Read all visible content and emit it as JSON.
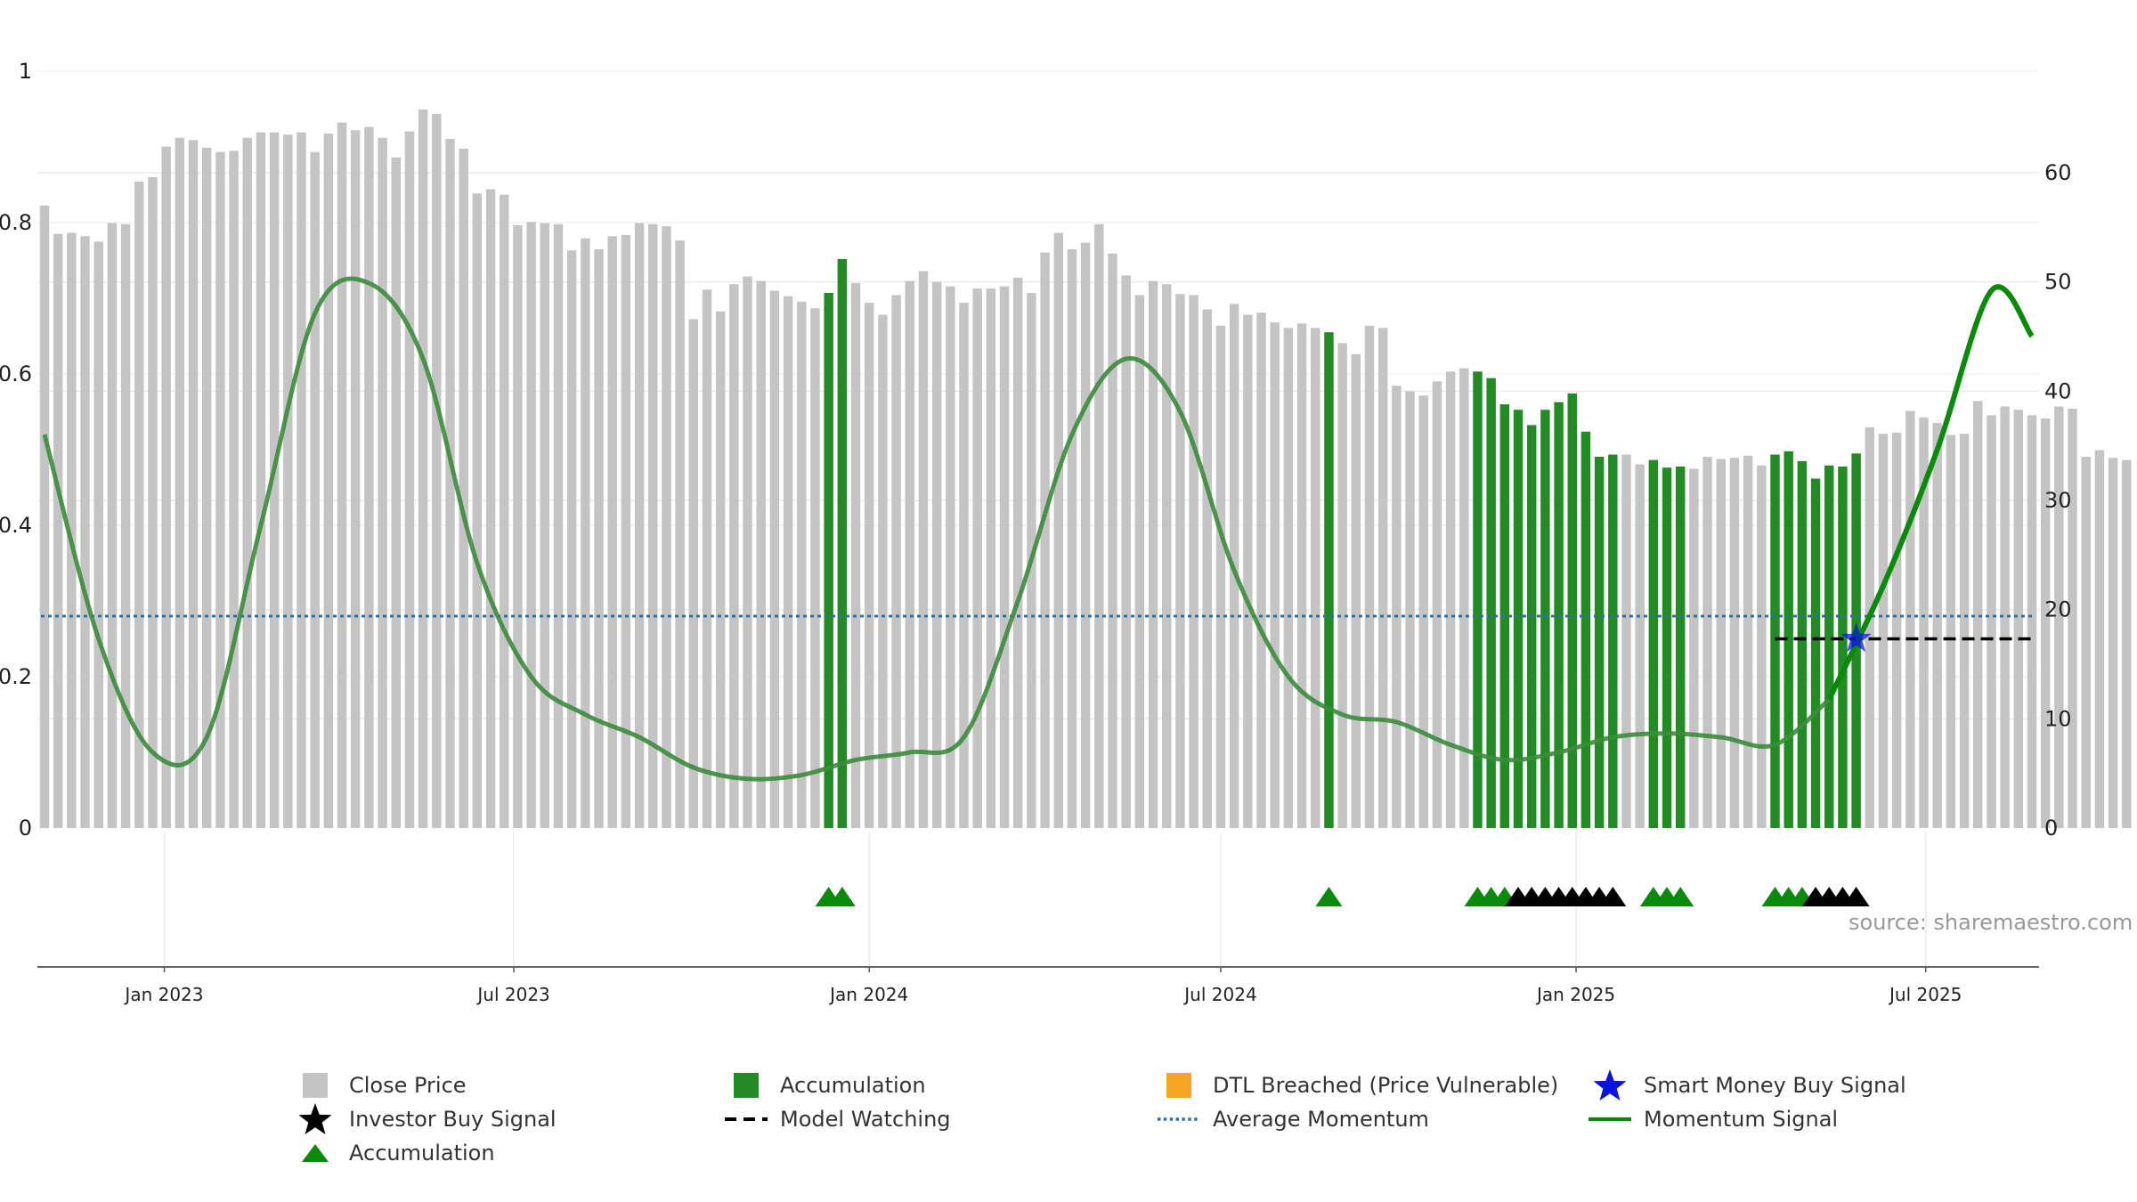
{
  "chart_data": {
    "type": "bar",
    "title": "",
    "source_label": "source: sharemaestro.com",
    "left_axis": {
      "ticks": [
        "0",
        "0.2",
        "0.4",
        "0.6",
        "0.8",
        "1"
      ],
      "range": [
        0,
        1
      ]
    },
    "right_axis": {
      "ticks": [
        "0",
        "10",
        "20",
        "30",
        "40",
        "50",
        "60"
      ],
      "range": [
        0,
        69.3
      ]
    },
    "x_axis": {
      "ticks": [
        "Jan 2023",
        "Jul 2023",
        "Jan 2024",
        "Jul 2024",
        "Jan 2025",
        "Jul 2025"
      ]
    },
    "date_range": [
      "2022-10-31",
      "2025-08-25"
    ],
    "close_price": [
      57,
      54.4,
      54.5,
      54.2,
      53.7,
      55.4,
      55.3,
      59.2,
      59.6,
      62.4,
      63.2,
      63,
      62.3,
      61.9,
      62,
      63.2,
      63.7,
      63.7,
      63.5,
      63.7,
      61.9,
      63.6,
      64.6,
      63.9,
      64.2,
      63.2,
      61.4,
      63.8,
      65.8,
      65.4,
      63.1,
      62.2,
      58.1,
      58.5,
      58,
      55.2,
      55.5,
      55.4,
      55.3,
      52.9,
      54,
      53,
      54.2,
      54.3,
      55.4,
      55.3,
      55.1,
      53.8,
      46.6,
      49.3,
      47.3,
      49.8,
      50.5,
      50.1,
      49.2,
      48.7,
      48.2,
      47.6,
      49,
      52.1,
      49.9,
      48.1,
      47,
      48.8,
      50.1,
      51,
      50,
      49.6,
      48.1,
      49.4,
      49.4,
      49.6,
      50.4,
      49,
      52.7,
      54.5,
      53,
      53.6,
      55.3,
      52.6,
      50.6,
      48.8,
      50.1,
      49.8,
      48.9,
      48.8,
      47.5,
      46,
      48,
      47,
      47.2,
      46.3,
      45.8,
      46.2,
      45.8,
      45.4,
      44.4,
      43.4,
      46,
      45.8,
      40.5,
      40,
      39.6,
      40.9,
      41.8,
      42.1,
      41.8,
      41.2,
      38.8,
      38.3,
      36.9,
      38.3,
      39,
      39.8,
      36.3,
      34,
      34.2,
      34.2,
      33.3,
      33.7,
      33,
      33.1,
      32.9,
      34,
      33.8,
      33.9,
      34.1,
      33.2,
      34.2,
      34.5,
      33.6,
      32,
      33.2,
      33.1,
      34.3,
      36.7,
      36.1,
      36.2,
      38.2,
      37.6,
      37.1,
      36,
      36.1,
      39.1,
      37.8,
      38.6,
      38.3,
      37.8,
      37.5,
      38.6,
      38.4,
      34,
      34.6,
      33.9,
      33.7
    ],
    "accumulation_weeks": [
      "2023-12-11",
      "2023-12-18",
      "2024-08-26",
      "2024-11-11",
      "2024-11-18",
      "2024-11-25",
      "2024-12-02",
      "2024-12-09",
      "2024-12-16",
      "2024-12-23",
      "2024-12-30",
      "2025-01-06",
      "2025-01-13",
      "2025-01-20",
      "2025-02-10",
      "2025-02-17",
      "2025-02-24",
      "2025-04-14",
      "2025-04-21",
      "2025-04-28",
      "2025-05-05",
      "2025-05-12",
      "2025-05-19",
      "2025-05-26"
    ],
    "investor_buy_weeks": [
      "2024-12-02",
      "2024-12-09",
      "2024-12-16",
      "2024-12-23",
      "2024-12-30",
      "2025-01-06",
      "2025-01-13",
      "2025-01-20",
      "2025-05-05",
      "2025-05-12",
      "2025-05-19",
      "2025-05-26"
    ],
    "smart_money_buy": {
      "date": "2025-05-26",
      "value": 0.25
    },
    "model_watching": {
      "start": "2025-04-14",
      "end": "2025-08-25",
      "value": 0.25
    },
    "average_momentum": 0.28,
    "momentum_signal": {
      "x": [
        "2022-10-31",
        "2022-11-28",
        "2022-12-26",
        "2023-01-23",
        "2023-02-20",
        "2023-03-20",
        "2023-04-17",
        "2023-05-15",
        "2023-06-12",
        "2023-07-10",
        "2023-08-07",
        "2023-09-04",
        "2023-10-02",
        "2023-10-30",
        "2023-11-27",
        "2023-12-25",
        "2024-01-22",
        "2024-02-19",
        "2024-03-18",
        "2024-04-15",
        "2024-05-13",
        "2024-06-10",
        "2024-07-08",
        "2024-08-05",
        "2024-09-02",
        "2024-09-30",
        "2024-10-28",
        "2024-11-25",
        "2024-12-23",
        "2025-01-20",
        "2025-02-17",
        "2025-03-17",
        "2025-04-14",
        "2025-05-12",
        "2025-06-09",
        "2025-07-07",
        "2025-08-04",
        "2025-08-25"
      ],
      "y": [
        0.52,
        0.25,
        0.1,
        0.12,
        0.4,
        0.68,
        0.72,
        0.62,
        0.35,
        0.2,
        0.15,
        0.12,
        0.08,
        0.065,
        0.07,
        0.09,
        0.1,
        0.12,
        0.3,
        0.52,
        0.62,
        0.55,
        0.34,
        0.2,
        0.15,
        0.14,
        0.11,
        0.09,
        0.1,
        0.12,
        0.125,
        0.12,
        0.11,
        0.17,
        0.32,
        0.5,
        0.71,
        0.65
      ]
    }
  },
  "legend": {
    "close_price": "Close Price",
    "accumulation_bar": "Accumulation",
    "dtl_breached": "DTL Breached (Price Vulnerable)",
    "smart_money": "Smart Money Buy Signal",
    "investor_buy": "Investor Buy Signal",
    "model_watching": "Model Watching",
    "average_momentum": "Average Momentum",
    "momentum_signal": "Momentum Signal",
    "accumulation_marker": "Accumulation"
  },
  "colors": {
    "close_price": "#c4c4c4",
    "accumulation": "#238b23",
    "dtl_breached": "#f5a623",
    "smart_money": "#0a14e0",
    "investor_buy": "#000000",
    "average_momentum": "#2f6fa6",
    "momentum_past": "#3c8c3c",
    "momentum_recent": "#0a8a0a"
  }
}
